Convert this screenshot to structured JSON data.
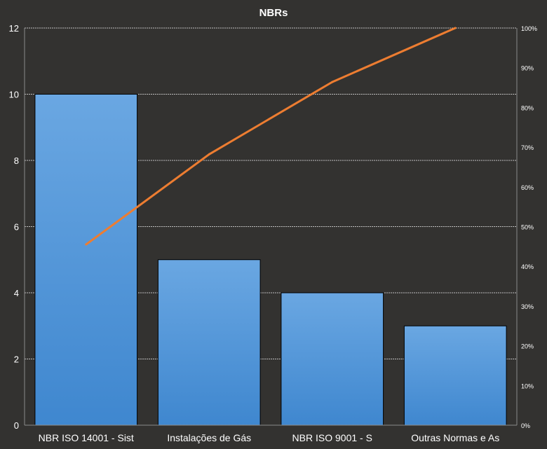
{
  "chart_data": {
    "type": "bar",
    "title": "NBRs",
    "categories": [
      "NBR ISO 14001 - Sist",
      "Instalações de Gás",
      "NBR ISO 9001 - S",
      "Outras Normas  e As"
    ],
    "series": [
      {
        "type": "bar",
        "values": [
          10,
          5,
          4,
          3
        ]
      },
      {
        "type": "line",
        "axis": "right",
        "values": [
          45.5,
          68.2,
          86.4,
          100
        ]
      }
    ],
    "ylim": [
      0,
      12
    ],
    "yticks": [
      0,
      2,
      4,
      6,
      8,
      10,
      12
    ],
    "y2lim": [
      0,
      100
    ],
    "y2ticks": [
      "0%",
      "10%",
      "20%",
      "30%",
      "40%",
      "50%",
      "60%",
      "70%",
      "80%",
      "90%",
      "100%"
    ],
    "grid": true,
    "colors": {
      "bar": "#4f93d9",
      "bar_top": "#6aa7e2",
      "line": "#ed7d31",
      "grid": "#bfbfbf",
      "background": "#333230"
    }
  }
}
